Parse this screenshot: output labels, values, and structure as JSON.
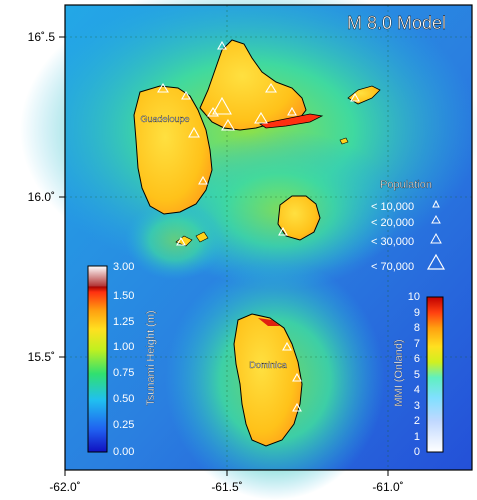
{
  "title": "M 8.0 Model",
  "axes": {
    "x_ticks": [
      "-62.0˚",
      "-61.5˚",
      "-61.0˚"
    ],
    "y_ticks": [
      "16˚.5",
      "16.0˚",
      "15.5˚"
    ]
  },
  "islands": {
    "guadeloupe": "Guadeloupe",
    "dominica": "Dominica"
  },
  "population_legend": {
    "title": "Population",
    "items": [
      "< 10,000",
      "< 20,000",
      "< 30,000",
      "< 70,000"
    ]
  },
  "tsunami_colorbar": {
    "label": "Tsunami Height (m)",
    "ticks": [
      "3.00",
      "1.50",
      "1.25",
      "1.00",
      "0.75",
      "0.50",
      "0.25",
      "0.00"
    ]
  },
  "mmi_colorbar": {
    "label": "MMI (Onland)",
    "ticks": [
      "10",
      "9",
      "8",
      "7",
      "6",
      "5",
      "4",
      "3",
      "2",
      "1",
      "0"
    ]
  },
  "colors": {
    "deep_sea": "#2c3fd6",
    "mid_sea": "#27b3e0",
    "shallow": "#3fd9a0",
    "shore": "#8ce04a",
    "land": "#ffd21a",
    "land_edge": "#ffa020",
    "hot": "#e01010"
  }
}
